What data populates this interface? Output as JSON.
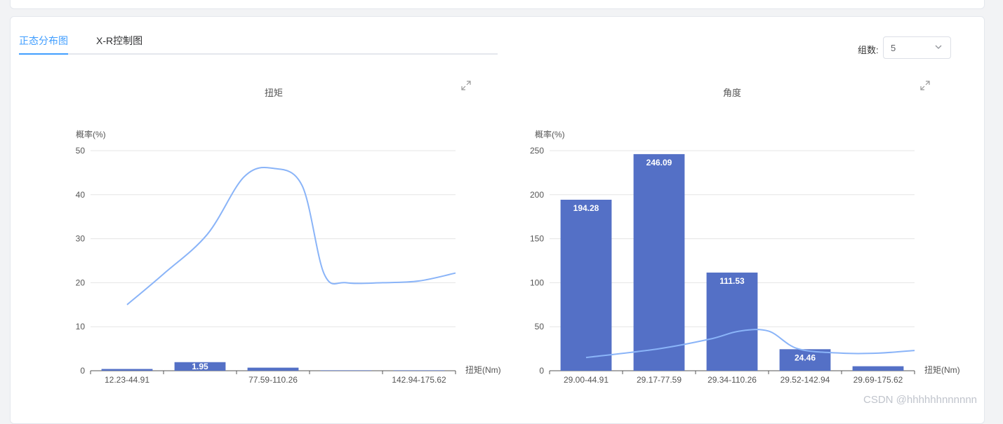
{
  "tabs": [
    {
      "label": "正态分布图",
      "active": true
    },
    {
      "label": "X-R控制图",
      "active": false
    }
  ],
  "group": {
    "label": "组数:",
    "value": "5"
  },
  "watermark": "CSDN @hhhhhhnnnnnn",
  "colors": {
    "bar": "#5470c6",
    "line": "#8ab4f8",
    "accent": "#409eff"
  },
  "charts": [
    {
      "title": "扭矩",
      "ylabel": "概率(%)",
      "xlabel": "扭矩(Nm)",
      "yticks": [
        "0",
        "10",
        "20",
        "30",
        "40",
        "50"
      ]
    },
    {
      "title": "角度",
      "ylabel": "概率(%)",
      "xlabel": "扭矩(Nm)",
      "yticks": [
        "0",
        "50",
        "100",
        "150",
        "200",
        "250"
      ]
    }
  ],
  "chart_data": [
    {
      "type": "bar",
      "title": "扭矩",
      "ylabel": "概率(%)",
      "xlabel": "扭矩(Nm)",
      "ylim": [
        0,
        50
      ],
      "categories": [
        "12.23-44.91",
        "",
        "77.59-110.26",
        "",
        "142.94-175.62"
      ],
      "values": [
        0.4,
        1.95,
        0.7,
        0.1,
        0.1
      ],
      "value_labels": [
        "",
        "1.95",
        "",
        "",
        ""
      ],
      "curve": [
        [
          0.5,
          15
        ],
        [
          1.0,
          22
        ],
        [
          1.6,
          31
        ],
        [
          2.1,
          44
        ],
        [
          2.5,
          46
        ],
        [
          2.9,
          42
        ],
        [
          3.2,
          22
        ],
        [
          3.5,
          20
        ],
        [
          4.0,
          20
        ],
        [
          4.5,
          20.4
        ],
        [
          5.0,
          22.2
        ]
      ]
    },
    {
      "type": "bar",
      "title": "角度",
      "ylabel": "概率(%)",
      "xlabel": "扭矩(Nm)",
      "ylim": [
        0,
        250
      ],
      "categories": [
        "29.00-44.91",
        "29.17-77.59",
        "29.34-110.26",
        "29.52-142.94",
        "29.69-175.62"
      ],
      "values": [
        194.28,
        246.09,
        111.53,
        24.46,
        5.1
      ],
      "value_labels": [
        "194.28",
        "246.09",
        "111.53",
        "24.46",
        ""
      ],
      "curve": [
        [
          0.5,
          15
        ],
        [
          1.5,
          25
        ],
        [
          2.2,
          36
        ],
        [
          2.6,
          45
        ],
        [
          3.0,
          45
        ],
        [
          3.4,
          25
        ],
        [
          4.0,
          20
        ],
        [
          4.5,
          20
        ],
        [
          5.0,
          23
        ]
      ]
    }
  ]
}
